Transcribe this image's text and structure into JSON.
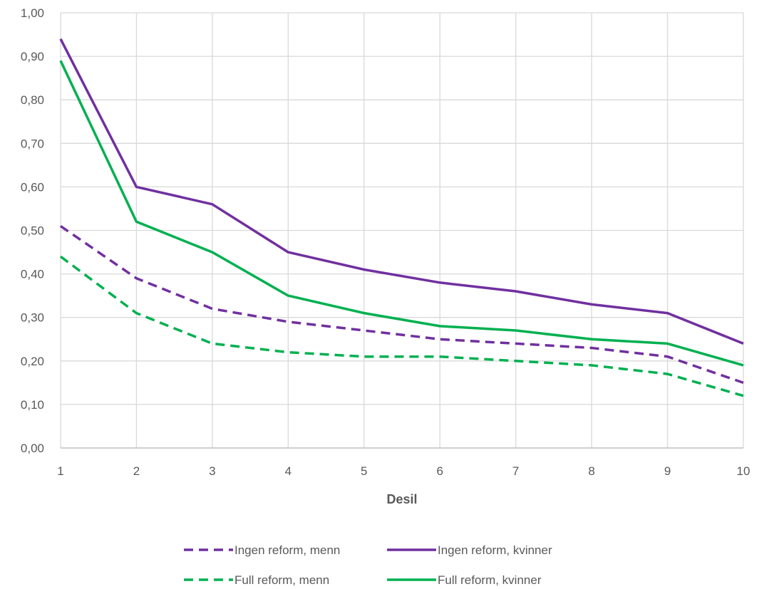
{
  "chart_data": {
    "type": "line",
    "x": [
      1,
      2,
      3,
      4,
      5,
      6,
      7,
      8,
      9,
      10
    ],
    "xlabel": "Desil",
    "ylabel": "",
    "ylim": [
      0,
      1
    ],
    "y_tick_labels": [
      "0,00",
      "0,10",
      "0,20",
      "0,30",
      "0,40",
      "0,50",
      "0,60",
      "0,70",
      "0,80",
      "0,90",
      "1,00"
    ],
    "x_tick_labels": [
      "1",
      "2",
      "3",
      "4",
      "5",
      "6",
      "7",
      "8",
      "9",
      "10"
    ],
    "grid": true,
    "legend_position": "bottom",
    "series": [
      {
        "name": "Ingen reform, menn",
        "color": "#7030A0",
        "dash": "dashed",
        "values": [
          0.51,
          0.39,
          0.32,
          0.29,
          0.27,
          0.25,
          0.24,
          0.23,
          0.21,
          0.15
        ]
      },
      {
        "name": "Ingen reform, kvinner",
        "color": "#7030A0",
        "dash": "solid",
        "values": [
          0.94,
          0.6,
          0.56,
          0.45,
          0.41,
          0.38,
          0.36,
          0.33,
          0.31,
          0.24
        ]
      },
      {
        "name": "Full reform, menn",
        "color": "#00B050",
        "dash": "dashed",
        "values": [
          0.44,
          0.31,
          0.24,
          0.22,
          0.21,
          0.21,
          0.2,
          0.19,
          0.17,
          0.12
        ]
      },
      {
        "name": "Full reform, kvinner",
        "color": "#00B050",
        "dash": "solid",
        "values": [
          0.89,
          0.52,
          0.45,
          0.35,
          0.31,
          0.28,
          0.27,
          0.25,
          0.24,
          0.19
        ]
      }
    ]
  }
}
